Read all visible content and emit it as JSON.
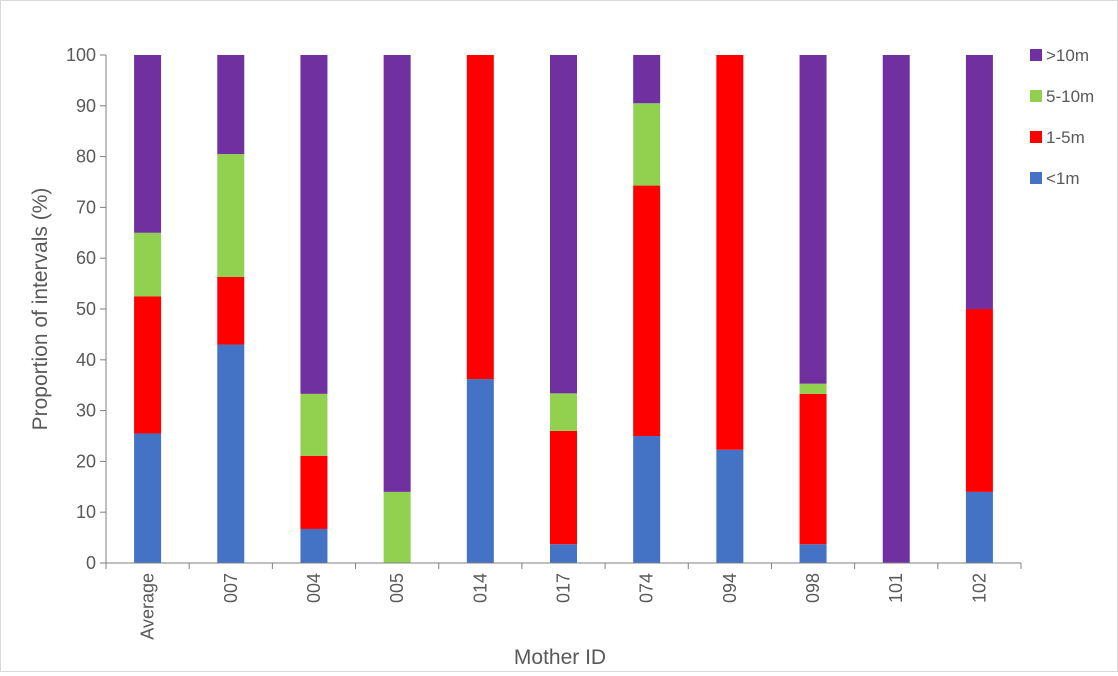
{
  "chart_data": {
    "type": "bar",
    "stacked": true,
    "title": "",
    "xlabel": "Mother ID",
    "ylabel": "Proportion of intervals (%)",
    "ylim": [
      0,
      100
    ],
    "ytick_step": 10,
    "grid": false,
    "legend_position": "top-right",
    "categories": [
      "Average",
      "007",
      "004",
      "005",
      "014",
      "017",
      "074",
      "094",
      "098",
      "101",
      "102"
    ],
    "series": [
      {
        "name": "<1m",
        "color": "#4472c4",
        "values": [
          25.5,
          43,
          6.7,
          0,
          36.2,
          3.7,
          25,
          22.3,
          3.7,
          0,
          14
        ]
      },
      {
        "name": "1-5m",
        "color": "#ff0000",
        "values": [
          27,
          13.3,
          14.4,
          0,
          63.8,
          22.3,
          49.3,
          77.7,
          29.6,
          0,
          36
        ]
      },
      {
        "name": "5-10m",
        "color": "#92d050",
        "values": [
          12.5,
          24.2,
          12.2,
          14,
          0,
          7.4,
          16.2,
          0,
          2,
          0,
          0
        ]
      },
      {
        "name": ">10m",
        "color": "#7030a0",
        "values": [
          35,
          19.5,
          66.7,
          86,
          0,
          66.6,
          9.5,
          0,
          64.7,
          100,
          50
        ]
      }
    ]
  }
}
